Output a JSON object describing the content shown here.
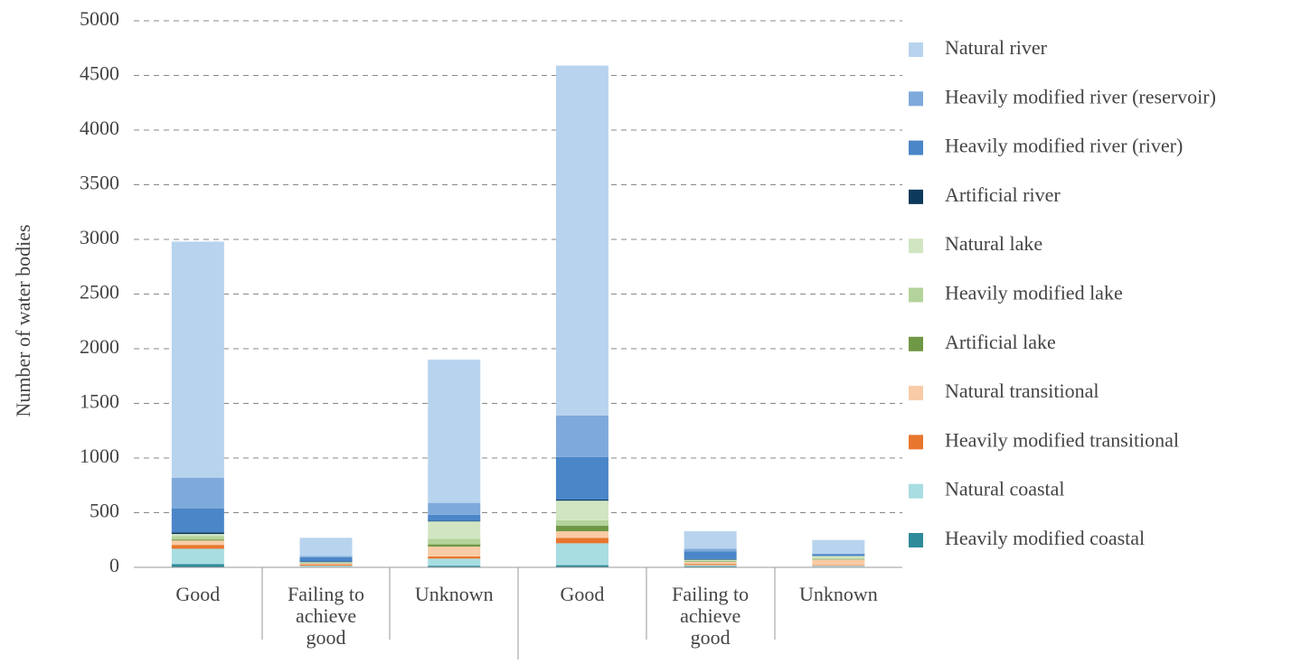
{
  "chart_data": {
    "type": "stacked_bar",
    "y_label": "Number of water bodies",
    "categories": [
      "Good",
      "Failing to\nachieve\ngood",
      "Unknown",
      "Good",
      "Failing to\nachieve\ngood",
      "Unknown"
    ],
    "ylim": [
      0,
      5000
    ],
    "yticks": [
      0,
      500,
      1000,
      1500,
      2000,
      2500,
      3000,
      3500,
      4000,
      4500,
      5000
    ],
    "grid": true,
    "legend": "right",
    "series": [
      {
        "name": "Natural river",
        "color": "#b8d3ee",
        "values": [
          2160,
          167,
          1310,
          3200,
          160,
          125
        ]
      },
      {
        "name": "Heavily modified river (reservoir)",
        "color": "#7eaadb",
        "values": [
          280,
          10,
          110,
          380,
          25,
          5
        ]
      },
      {
        "name": "Heavily modified river (river)",
        "color": "#4a86c8",
        "values": [
          220,
          40,
          55,
          390,
          70,
          15
        ]
      },
      {
        "name": "Artificial river",
        "color": "#0d3a5c",
        "values": [
          15,
          5,
          5,
          10,
          5,
          2
        ]
      },
      {
        "name": "Natural lake",
        "color": "#d1e5c3",
        "values": [
          20,
          5,
          160,
          180,
          10,
          20
        ]
      },
      {
        "name": "Heavily modified lake",
        "color": "#b4d39b",
        "values": [
          30,
          5,
          50,
          50,
          5,
          10
        ]
      },
      {
        "name": "Artificial lake",
        "color": "#6e9845",
        "values": [
          10,
          3,
          20,
          50,
          5,
          3
        ]
      },
      {
        "name": "Natural transitional",
        "color": "#f9cba6",
        "values": [
          40,
          10,
          90,
          60,
          20,
          50
        ]
      },
      {
        "name": "Heavily modified transitional",
        "color": "#e8762d",
        "values": [
          35,
          10,
          20,
          50,
          10,
          5
        ]
      },
      {
        "name": "Natural coastal",
        "color": "#a8dde2",
        "values": [
          140,
          10,
          65,
          200,
          10,
          10
        ]
      },
      {
        "name": "Heavily modified coastal",
        "color": "#2e8b99",
        "values": [
          30,
          5,
          15,
          20,
          10,
          5
        ]
      }
    ]
  }
}
